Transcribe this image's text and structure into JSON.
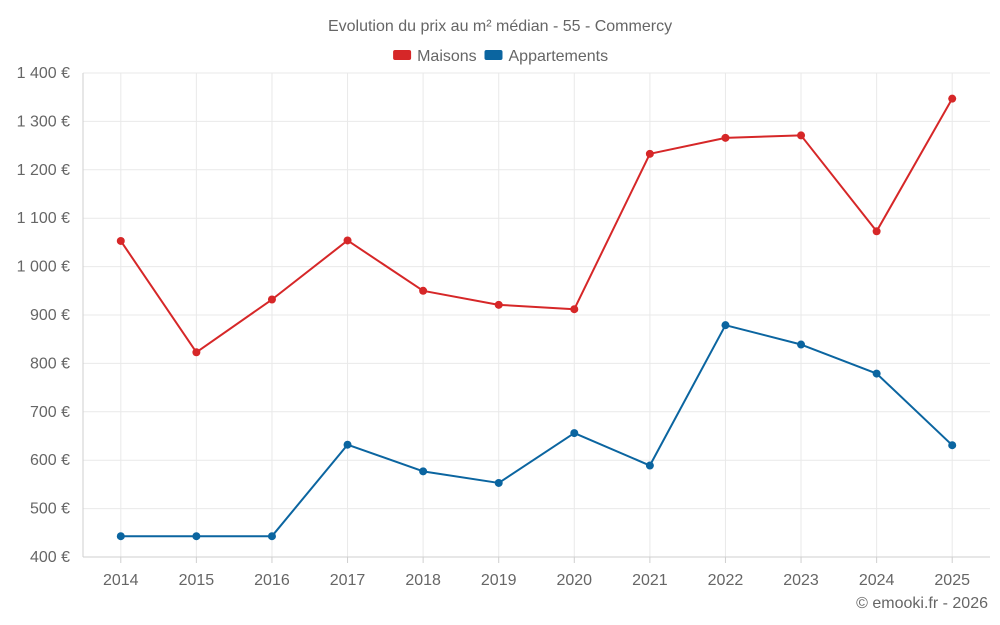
{
  "chart_data": {
    "type": "line",
    "title": "Evolution du prix au m² médian - 55 - Commercy",
    "categories": [
      "2014",
      "2015",
      "2016",
      "2017",
      "2018",
      "2019",
      "2020",
      "2021",
      "2022",
      "2023",
      "2024",
      "2025"
    ],
    "series": [
      {
        "name": "Maisons",
        "color": "#d62728",
        "values": [
          1053,
          823,
          932,
          1054,
          950,
          921,
          912,
          1233,
          1266,
          1271,
          1073,
          1347
        ]
      },
      {
        "name": "Appartements",
        "color": "#0b65a0",
        "values": [
          443,
          443,
          443,
          632,
          577,
          553,
          656,
          589,
          879,
          839,
          779,
          631
        ]
      }
    ],
    "ylim": [
      400,
      1400
    ],
    "yticks": [
      400,
      500,
      600,
      700,
      800,
      900,
      1000,
      1100,
      1200,
      1300,
      1400
    ],
    "ytick_labels": [
      "400 €",
      "500 €",
      "600 €",
      "700 €",
      "800 €",
      "900 €",
      "1 000 €",
      "1 100 €",
      "1 200 €",
      "1 300 €",
      "1 400 €"
    ],
    "xlabel": "",
    "ylabel": "",
    "grid": true,
    "legend_position": "top-center"
  },
  "credit": "© emooki.fr - 2026"
}
